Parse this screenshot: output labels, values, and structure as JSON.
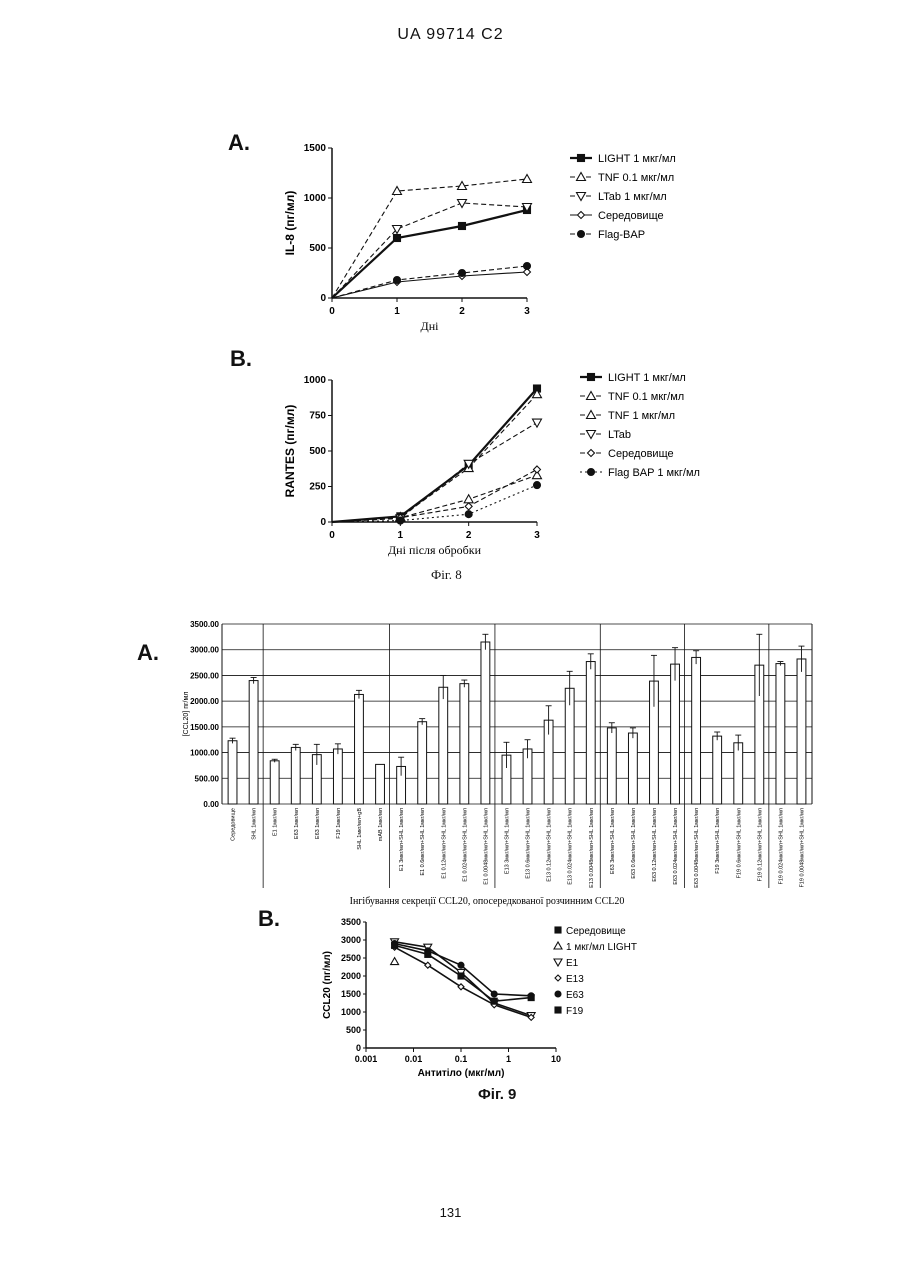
{
  "header": {
    "doc_id": "UA  99714  C2"
  },
  "page_number": "131",
  "fig8": {
    "caption": "Фіг. 8",
    "panelA": {
      "letter": "A.",
      "chart_data": {
        "type": "line",
        "ylabel": "IL-8 (пг/мл)",
        "xlabel": "Дні",
        "x": [
          0,
          1,
          2,
          3
        ],
        "xticks": [
          "0",
          "1",
          "2",
          "3"
        ],
        "yticks": [
          "0",
          "500",
          "1000",
          "1500"
        ],
        "ylim": [
          0,
          1500
        ],
        "series": [
          {
            "name": "LIGHT 1 мкг/мл",
            "marker": "square",
            "dash": "solid",
            "values": [
              0,
              600,
              720,
              880
            ]
          },
          {
            "name": "TNF 0.1 мкг/мл",
            "marker": "triangle",
            "dash": "dashed",
            "values": [
              0,
              1070,
              1120,
              1190
            ]
          },
          {
            "name": "LTab 1 мкг/мл",
            "marker": "triangle-down",
            "dash": "dashed",
            "values": [
              0,
              690,
              950,
              910
            ]
          },
          {
            "name": "Середовище",
            "marker": "diamond",
            "dash": "solid",
            "values": [
              0,
              160,
              220,
              260
            ]
          },
          {
            "name": "Flag-BAP",
            "marker": "circle",
            "dash": "dashed",
            "values": [
              0,
              180,
              250,
              320
            ]
          }
        ]
      }
    },
    "panelB": {
      "letter": "B.",
      "chart_data": {
        "type": "line",
        "ylabel": "RANTES (пг/мл)",
        "xlabel": "Дні після обробки",
        "x": [
          0,
          1,
          2,
          3
        ],
        "xticks": [
          "0",
          "1",
          "2",
          "3"
        ],
        "yticks": [
          "0",
          "250",
          "500",
          "750",
          "1000"
        ],
        "ylim": [
          0,
          1000
        ],
        "series": [
          {
            "name": "LIGHT 1 мкг/мл",
            "marker": "square",
            "dash": "solid",
            "values": [
              0,
              40,
              400,
              940
            ]
          },
          {
            "name": "TNF 0.1 мкг/мл",
            "marker": "triangle",
            "dash": "dashed",
            "values": [
              0,
              35,
              380,
              900
            ]
          },
          {
            "name": "TNF 1 мкг/мл",
            "marker": "triangle",
            "dash": "dashed",
            "values": [
              0,
              30,
              160,
              330
            ]
          },
          {
            "name": "LTab",
            "marker": "triangle-down",
            "dash": "dashed",
            "values": [
              0,
              25,
              410,
              700
            ]
          },
          {
            "name": "Середовище",
            "marker": "diamond",
            "dash": "dashed",
            "values": [
              0,
              30,
              110,
              370
            ]
          },
          {
            "name": "Flag BAP 1 мкг/мл",
            "marker": "circle",
            "dash": "dotted",
            "values": [
              0,
              10,
              55,
              260
            ]
          }
        ]
      }
    }
  },
  "fig9": {
    "caption": "Фіг. 9",
    "panelA": {
      "letter": "A.",
      "chart_data": {
        "type": "bar",
        "ylabel": "[CCL20] пг/мл",
        "xlabel": "Інгібування секреції CCL20, опосередкованої розчинним CCL20",
        "ylim": [
          0,
          3500
        ],
        "yticks": [
          "0.00",
          "500.00",
          "1000.00",
          "1500.00",
          "2000.00",
          "2500.00",
          "3000.00",
          "3500.00"
        ],
        "group_separators_after": [
          1,
          7,
          12,
          17,
          21,
          25
        ],
        "categories": [
          "Середовище",
          "SHL 1мкг/мл",
          "E1 1мкг/мл",
          "E63 1мкг/мл",
          "E63 1мкг/мл",
          "F19 1мкг/мл",
          "SHL 1мкг/мл+gB",
          "mAB 1мкг/мл",
          "E1 3мкг/мл+SHL 1мкг/мл",
          "E1 0.6мкг/мл+SHL 1мкг/мл",
          "E1 0.12мкг/мл+SHL 1мкг/мл",
          "E1 0.024мкг/мл+SHL 1мкг/мл",
          "E1 0.0048мкг/мл+SHL 1мкг/мл",
          "E13 3мкг/мл+SHL 1мкг/мл",
          "E13 0.6мкг/мл+SHL 1мкг/мл",
          "E13 0.12мкг/мл+SHL 1мкг/мл",
          "E13 0.024мкг/мл+SHL 1мкг/мл",
          "E13 0.0048мкг/мл+SHL 1мкг/мл",
          "E63 3мкг/мл+SHL 1мкг/мл",
          "E63 0.6мкг/мл+SHL 1мкг/мл",
          "E63 0.12мкг/мл+SHL 1мкг/мл",
          "E63 0.024мкг/мл+SHL 1мкг/мл",
          "E63 0.0048мкг/мл+SHL 1мкг/мл",
          "F19 3мкг/мл+SHL 1мкг/мл",
          "F19 0.6мкг/мл+SHL 1мкг/мл",
          "F19 0.12мкг/мл+SHL 1мкг/мл",
          "F19 0.024мкг/мл+SHL 1мкг/мл",
          "F19 0.0048мкг/мл+SHL 1мкг/мл"
        ],
        "values": [
          1230,
          2400,
          840,
          1100,
          960,
          1070,
          2130,
          770,
          730,
          1600,
          2270,
          2340,
          3150,
          950,
          1070,
          1630,
          2250,
          2770,
          1480,
          1380,
          2390,
          2720,
          2850,
          1320,
          1190,
          2700,
          2730,
          2820
        ],
        "errors": [
          50,
          60,
          30,
          60,
          200,
          100,
          80,
          0,
          180,
          60,
          230,
          70,
          150,
          250,
          180,
          280,
          330,
          150,
          100,
          100,
          500,
          320,
          130,
          80,
          150,
          600,
          40,
          250
        ]
      }
    },
    "panelB": {
      "letter": "B.",
      "chart_data": {
        "type": "line",
        "ylabel": "CCL20 (пг/мл)",
        "xlabel": "Антитіло (мкг/мл)",
        "x_scale": "log",
        "xlim": [
          0.001,
          10
        ],
        "xticks": [
          "0.001",
          "0.01",
          "0.1",
          "1",
          "10"
        ],
        "yticks": [
          "0",
          "500",
          "1000",
          "1500",
          "2000",
          "2500",
          "3000",
          "3500"
        ],
        "ylim": [
          0,
          3500
        ],
        "series": [
          {
            "name": "Середовище",
            "marker": "square-small",
            "x": [],
            "values": []
          },
          {
            "name": "1 мкг/мл LIGHT",
            "marker": "triangle",
            "x": [
              0.004
            ],
            "values": [
              2400
            ]
          },
          {
            "name": "E1",
            "marker": "triangle-down",
            "x": [
              0.004,
              0.02,
              0.1,
              0.5,
              3
            ],
            "values": [
              2950,
              2800,
              2100,
              1250,
              900
            ]
          },
          {
            "name": "E13",
            "marker": "diamond",
            "x": [
              0.004,
              0.02,
              0.1,
              0.5,
              3
            ],
            "values": [
              2800,
              2300,
              1700,
              1200,
              850
            ]
          },
          {
            "name": "E63",
            "marker": "circle",
            "x": [
              0.004,
              0.02,
              0.1,
              0.5,
              3
            ],
            "values": [
              2900,
              2700,
              2300,
              1500,
              1450
            ]
          },
          {
            "name": "F19",
            "marker": "square",
            "x": [
              0.004,
              0.02,
              0.1,
              0.5,
              3
            ],
            "values": [
              2850,
              2600,
              2000,
              1300,
              1400
            ]
          }
        ]
      }
    }
  }
}
